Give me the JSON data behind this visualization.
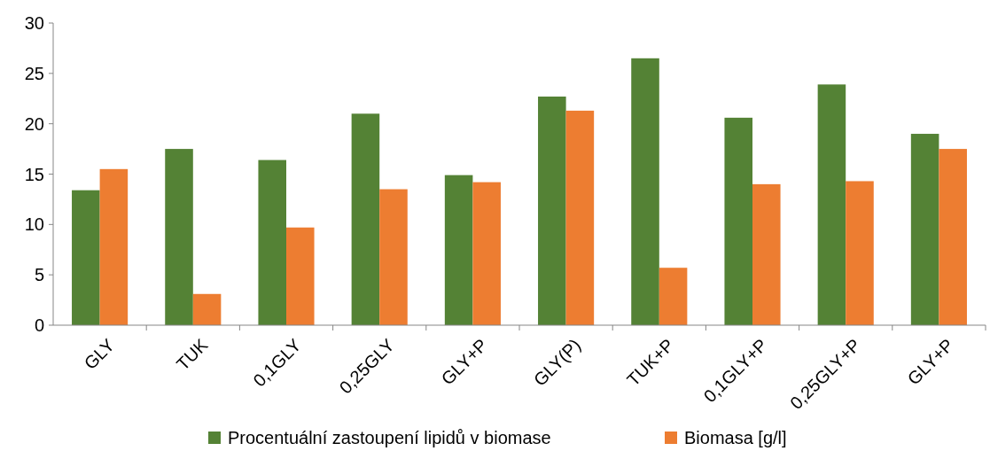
{
  "chart_data": {
    "type": "bar",
    "categories": [
      "GLY",
      "TUK",
      "0,1GLY",
      "0,25GLY",
      "GLY+P",
      "GLY(P)",
      "TUK+P",
      "0,1GLY+P",
      "0,25GLY+P",
      "GLY+P"
    ],
    "series": [
      {
        "name": "Procentuální zastoupení lipidů v biomase",
        "color": "#548235",
        "values": [
          13.4,
          17.5,
          16.4,
          21.0,
          14.9,
          22.7,
          26.5,
          20.6,
          23.9,
          19.0
        ]
      },
      {
        "name": "Biomasa [g/l]",
        "color": "#ed7d31",
        "values": [
          15.5,
          3.1,
          9.7,
          13.5,
          14.2,
          21.3,
          5.7,
          14.0,
          14.3,
          17.5
        ]
      }
    ],
    "ylim": [
      0,
      30
    ],
    "yticks": [
      0,
      5,
      10,
      15,
      20,
      25,
      30
    ],
    "grid": false,
    "legend": "bottom"
  }
}
